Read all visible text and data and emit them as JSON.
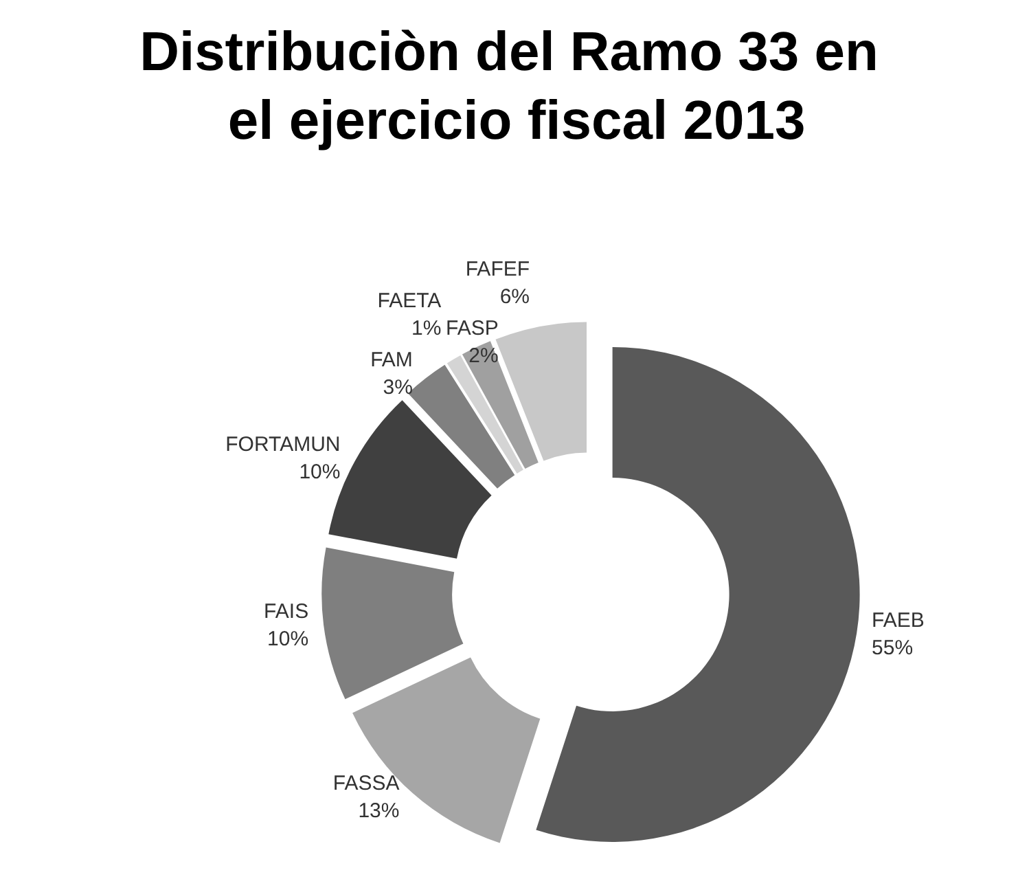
{
  "chart_data": {
    "type": "donut",
    "title": "Distribuciòn del Ramo 33 en el ejercicio fiscal 2013",
    "categories": [
      "FAEB",
      "FASSA",
      "FAIS",
      "FORTAMUN",
      "FAM",
      "FAETA",
      "FASP",
      "FAFEF"
    ],
    "values": [
      55,
      13,
      10,
      10,
      3,
      1,
      2,
      6
    ],
    "value_labels": [
      "55%",
      "13%",
      "10%",
      "10%",
      "3%",
      "1%",
      "2%",
      "6%"
    ],
    "colors": [
      "#595959",
      "#a6a6a6",
      "#7f7f7f",
      "#404040",
      "#808080",
      "#d4d4d4",
      "#a0a0a0",
      "#c8c8c8"
    ],
    "legend": false
  }
}
